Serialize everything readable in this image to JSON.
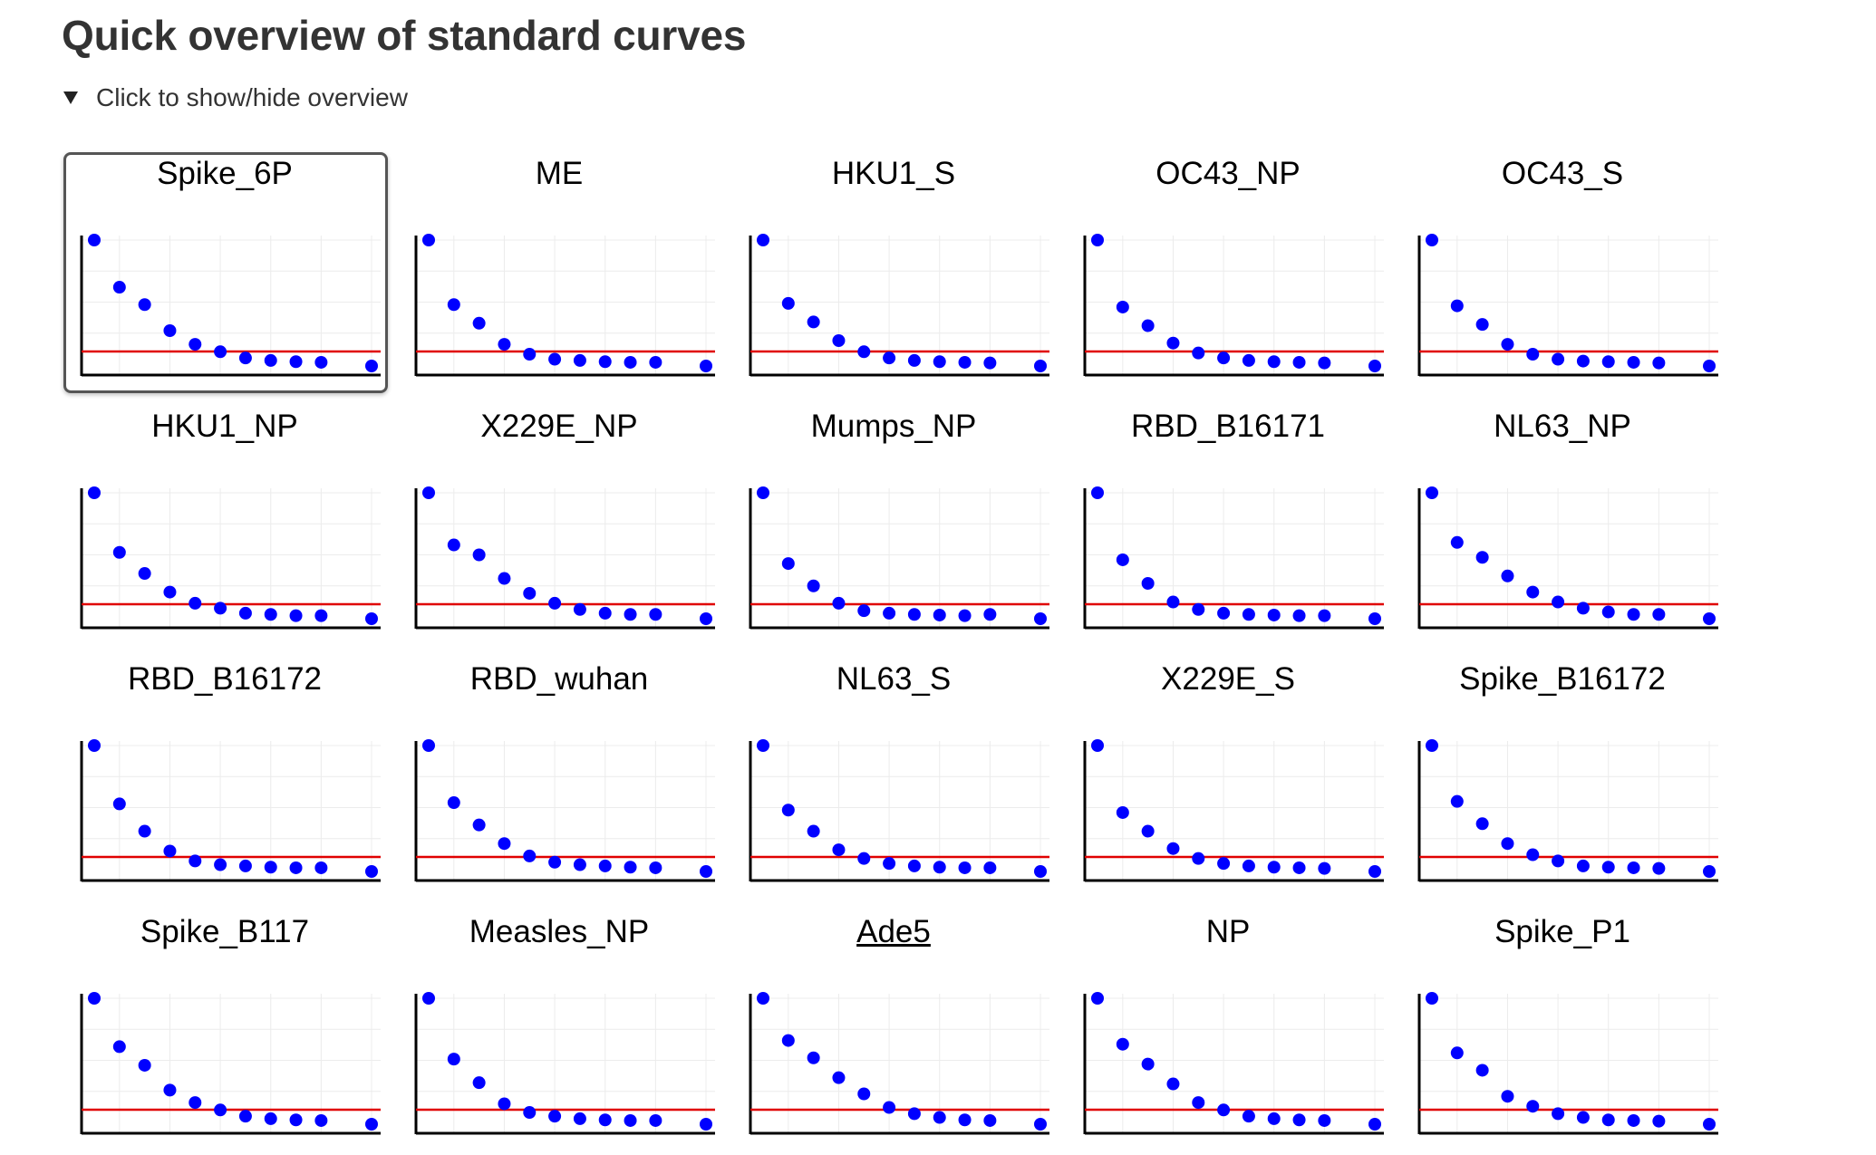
{
  "page": {
    "title": "Quick overview of standard curves",
    "toggle_label": "Click to show/hide overview"
  },
  "colors": {
    "point": "#0000ff",
    "baseline": "#e00000",
    "axis": "#000000",
    "grid": "#ececec",
    "selected_border": "#555555"
  },
  "selected_index": 0,
  "chart_data": [
    {
      "type": "scatter",
      "title": "Spike_6P",
      "x": [
        1,
        2,
        3,
        4,
        5,
        6,
        7,
        8,
        9,
        10,
        12
      ],
      "values": [
        1.0,
        0.62,
        0.48,
        0.27,
        0.16,
        0.1,
        0.05,
        0.03,
        0.02,
        0.015,
        0.0
      ],
      "baseline": 0.0
    },
    {
      "type": "scatter",
      "title": "ME",
      "x": [
        1,
        2,
        3,
        4,
        5,
        6,
        7,
        8,
        9,
        10,
        12
      ],
      "values": [
        1.0,
        0.48,
        0.33,
        0.16,
        0.08,
        0.04,
        0.03,
        0.02,
        0.015,
        0.015,
        0.0
      ],
      "baseline": 0.0
    },
    {
      "type": "scatter",
      "title": "HKU1_S",
      "x": [
        1,
        2,
        3,
        4,
        5,
        6,
        7,
        8,
        9,
        10,
        12
      ],
      "values": [
        1.0,
        0.49,
        0.34,
        0.19,
        0.1,
        0.05,
        0.03,
        0.02,
        0.015,
        0.01,
        0.0
      ],
      "baseline": 0.0
    },
    {
      "type": "scatter",
      "title": "OC43_NP",
      "x": [
        1,
        2,
        3,
        4,
        5,
        6,
        7,
        8,
        9,
        10,
        12
      ],
      "values": [
        1.0,
        0.46,
        0.31,
        0.17,
        0.09,
        0.05,
        0.03,
        0.02,
        0.015,
        0.01,
        0.0
      ],
      "baseline": 0.0
    },
    {
      "type": "scatter",
      "title": "OC43_S",
      "x": [
        1,
        2,
        3,
        4,
        5,
        6,
        7,
        8,
        9,
        10,
        12
      ],
      "values": [
        1.0,
        0.47,
        0.32,
        0.16,
        0.08,
        0.04,
        0.025,
        0.02,
        0.015,
        0.01,
        0.0
      ],
      "baseline": 0.0
    },
    {
      "type": "scatter",
      "title": "HKU1_NP",
      "x": [
        1,
        2,
        3,
        4,
        5,
        6,
        7,
        8,
        9,
        10,
        12
      ],
      "values": [
        1.0,
        0.52,
        0.35,
        0.2,
        0.11,
        0.07,
        0.03,
        0.02,
        0.01,
        0.01,
        0.0
      ],
      "baseline": 0.0
    },
    {
      "type": "scatter",
      "title": "X229E_NP",
      "x": [
        1,
        2,
        3,
        4,
        5,
        6,
        7,
        8,
        9,
        10,
        12
      ],
      "values": [
        1.0,
        0.58,
        0.5,
        0.31,
        0.19,
        0.11,
        0.06,
        0.03,
        0.02,
        0.02,
        0.0
      ],
      "baseline": 0.0
    },
    {
      "type": "scatter",
      "title": "Mumps_NP",
      "x": [
        1,
        2,
        3,
        4,
        5,
        6,
        7,
        8,
        9,
        10,
        12
      ],
      "values": [
        1.0,
        0.43,
        0.25,
        0.11,
        0.05,
        0.03,
        0.02,
        0.015,
        0.01,
        0.02,
        0.0
      ],
      "baseline": 0.0
    },
    {
      "type": "scatter",
      "title": "RBD_B16171",
      "x": [
        1,
        2,
        3,
        4,
        5,
        6,
        7,
        8,
        9,
        10,
        12
      ],
      "values": [
        1.0,
        0.46,
        0.27,
        0.12,
        0.06,
        0.03,
        0.02,
        0.015,
        0.01,
        0.01,
        0.0
      ],
      "baseline": 0.0
    },
    {
      "type": "scatter",
      "title": "NL63_NP",
      "x": [
        1,
        2,
        3,
        4,
        5,
        6,
        7,
        8,
        9,
        10,
        12
      ],
      "values": [
        1.0,
        0.6,
        0.48,
        0.33,
        0.2,
        0.12,
        0.07,
        0.04,
        0.02,
        0.02,
        0.0
      ],
      "baseline": 0.0
    },
    {
      "type": "scatter",
      "title": "RBD_B16172",
      "x": [
        1,
        2,
        3,
        4,
        5,
        6,
        7,
        8,
        9,
        10,
        12
      ],
      "values": [
        1.0,
        0.53,
        0.31,
        0.15,
        0.07,
        0.04,
        0.03,
        0.02,
        0.015,
        0.015,
        0.0
      ],
      "baseline": 0.0
    },
    {
      "type": "scatter",
      "title": "RBD_wuhan",
      "x": [
        1,
        2,
        3,
        4,
        5,
        6,
        7,
        8,
        9,
        10,
        12
      ],
      "values": [
        1.0,
        0.54,
        0.36,
        0.21,
        0.11,
        0.06,
        0.04,
        0.03,
        0.02,
        0.015,
        0.0
      ],
      "baseline": 0.0
    },
    {
      "type": "scatter",
      "title": "NL63_S",
      "x": [
        1,
        2,
        3,
        4,
        5,
        6,
        7,
        8,
        9,
        10,
        12
      ],
      "values": [
        1.0,
        0.48,
        0.31,
        0.16,
        0.09,
        0.05,
        0.03,
        0.02,
        0.015,
        0.015,
        0.0
      ],
      "baseline": 0.0
    },
    {
      "type": "scatter",
      "title": "X229E_S",
      "x": [
        1,
        2,
        3,
        4,
        5,
        6,
        7,
        8,
        9,
        10,
        12
      ],
      "values": [
        1.0,
        0.46,
        0.31,
        0.17,
        0.09,
        0.05,
        0.03,
        0.02,
        0.015,
        0.01,
        0.0
      ],
      "baseline": 0.0
    },
    {
      "type": "scatter",
      "title": "Spike_B16172",
      "x": [
        1,
        2,
        3,
        4,
        5,
        6,
        7,
        8,
        9,
        10,
        12
      ],
      "values": [
        1.0,
        0.55,
        0.37,
        0.21,
        0.12,
        0.07,
        0.03,
        0.02,
        0.015,
        0.01,
        0.0
      ],
      "baseline": 0.0
    },
    {
      "type": "scatter",
      "title": "Spike_B117",
      "x": [
        1,
        2,
        3,
        4,
        5,
        6,
        7,
        8,
        9,
        10,
        12
      ],
      "values": [
        1.0,
        0.61,
        0.46,
        0.26,
        0.16,
        0.1,
        0.05,
        0.03,
        0.02,
        0.015,
        0.0
      ],
      "baseline": 0.0
    },
    {
      "type": "scatter",
      "title": "Measles_NP",
      "x": [
        1,
        2,
        3,
        4,
        5,
        6,
        7,
        8,
        9,
        10,
        12
      ],
      "values": [
        1.0,
        0.51,
        0.32,
        0.15,
        0.08,
        0.05,
        0.03,
        0.02,
        0.015,
        0.015,
        0.0
      ],
      "baseline": 0.0
    },
    {
      "type": "scatter",
      "title": "Ade5",
      "x": [
        1,
        2,
        3,
        4,
        5,
        6,
        7,
        8,
        9,
        10,
        12
      ],
      "values": [
        1.0,
        0.66,
        0.52,
        0.36,
        0.23,
        0.12,
        0.07,
        0.04,
        0.02,
        0.015,
        0.0
      ],
      "baseline": 0.0,
      "link": true
    },
    {
      "type": "scatter",
      "title": "NP",
      "x": [
        1,
        2,
        3,
        4,
        5,
        6,
        7,
        8,
        9,
        10,
        12
      ],
      "values": [
        1.0,
        0.63,
        0.47,
        0.31,
        0.16,
        0.1,
        0.05,
        0.03,
        0.02,
        0.015,
        0.0
      ],
      "baseline": 0.0
    },
    {
      "type": "scatter",
      "title": "Spike_P1",
      "x": [
        1,
        2,
        3,
        4,
        5,
        6,
        7,
        8,
        9,
        10,
        12
      ],
      "values": [
        1.0,
        0.56,
        0.42,
        0.21,
        0.13,
        0.07,
        0.04,
        0.02,
        0.015,
        0.01,
        0.0
      ],
      "baseline": 0.0
    }
  ]
}
